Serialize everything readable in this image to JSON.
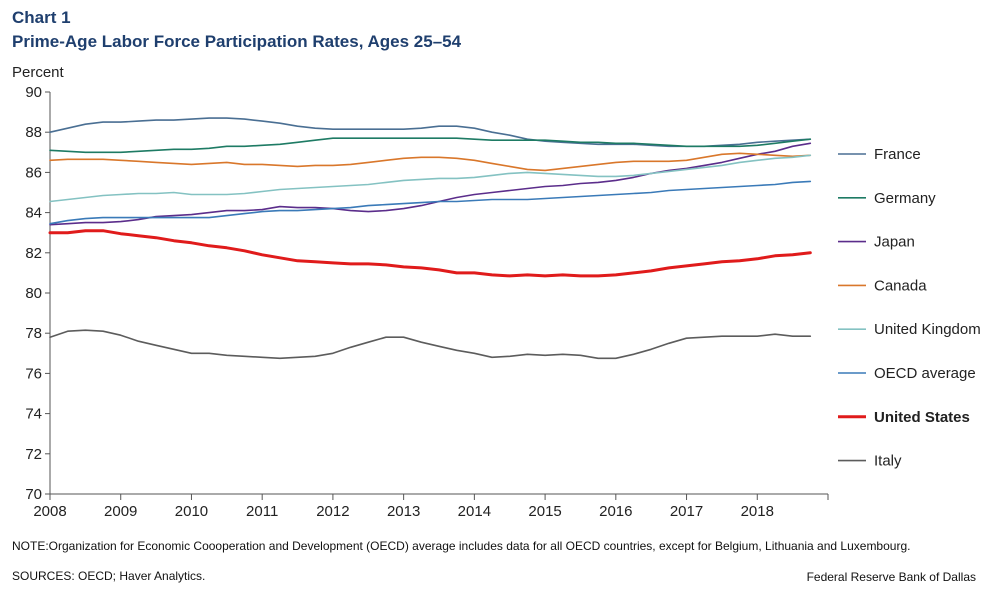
{
  "chart_data": {
    "type": "line",
    "title": "Chart 1",
    "subtitle": "Prime-Age Labor Force Participation Rates, Ages 25–54",
    "ylabel": "Percent",
    "xlabel": "",
    "xlim": [
      2008,
      2019
    ],
    "ylim": [
      70,
      90
    ],
    "yticks": [
      "70",
      "72",
      "74",
      "76",
      "78",
      "80",
      "82",
      "84",
      "86",
      "88",
      "90"
    ],
    "xticks": [
      "2008",
      "2009",
      "2010",
      "2011",
      "2012",
      "2013",
      "2014",
      "2015",
      "2016",
      "2017",
      "2018"
    ],
    "x": [
      2008.0,
      2008.25,
      2008.5,
      2008.75,
      2009.0,
      2009.25,
      2009.5,
      2009.75,
      2010.0,
      2010.25,
      2010.5,
      2010.75,
      2011.0,
      2011.25,
      2011.5,
      2011.75,
      2012.0,
      2012.25,
      2012.5,
      2012.75,
      2013.0,
      2013.25,
      2013.5,
      2013.75,
      2014.0,
      2014.25,
      2014.5,
      2014.75,
      2015.0,
      2015.25,
      2015.5,
      2015.75,
      2016.0,
      2016.25,
      2016.5,
      2016.75,
      2017.0,
      2017.25,
      2017.5,
      2017.75,
      2018.0,
      2018.25,
      2018.5,
      2018.75
    ],
    "series": [
      {
        "name": "France",
        "color": "#4a6f93",
        "width": 1.6,
        "bold": false,
        "values": [
          88.0,
          88.2,
          88.4,
          88.5,
          88.5,
          88.55,
          88.6,
          88.6,
          88.65,
          88.7,
          88.7,
          88.65,
          88.55,
          88.45,
          88.3,
          88.2,
          88.15,
          88.15,
          88.15,
          88.15,
          88.15,
          88.2,
          88.3,
          88.3,
          88.2,
          88.0,
          87.85,
          87.65,
          87.55,
          87.5,
          87.45,
          87.4,
          87.4,
          87.4,
          87.35,
          87.3,
          87.3,
          87.3,
          87.35,
          87.4,
          87.5,
          87.55,
          87.6,
          87.65
        ]
      },
      {
        "name": "Germany",
        "color": "#1e7b64",
        "width": 1.6,
        "bold": false,
        "values": [
          87.1,
          87.05,
          87.0,
          87.0,
          87.0,
          87.05,
          87.1,
          87.15,
          87.15,
          87.2,
          87.3,
          87.3,
          87.35,
          87.4,
          87.5,
          87.6,
          87.7,
          87.7,
          87.7,
          87.7,
          87.7,
          87.7,
          87.7,
          87.7,
          87.65,
          87.6,
          87.6,
          87.6,
          87.6,
          87.55,
          87.5,
          87.5,
          87.45,
          87.45,
          87.4,
          87.35,
          87.3,
          87.3,
          87.3,
          87.3,
          87.35,
          87.45,
          87.55,
          87.65
        ]
      },
      {
        "name": "Japan",
        "color": "#5b2d8b",
        "width": 1.6,
        "bold": false,
        "values": [
          83.4,
          83.45,
          83.5,
          83.5,
          83.55,
          83.65,
          83.8,
          83.85,
          83.9,
          84.0,
          84.1,
          84.1,
          84.15,
          84.3,
          84.25,
          84.25,
          84.2,
          84.1,
          84.05,
          84.1,
          84.2,
          84.35,
          84.55,
          84.75,
          84.9,
          85.0,
          85.1,
          85.2,
          85.3,
          85.35,
          85.45,
          85.5,
          85.6,
          85.75,
          85.95,
          86.1,
          86.2,
          86.35,
          86.5,
          86.7,
          86.9,
          87.05,
          87.3,
          87.45
        ]
      },
      {
        "name": "Canada",
        "color": "#d9772b",
        "width": 1.6,
        "bold": false,
        "values": [
          86.6,
          86.65,
          86.65,
          86.65,
          86.6,
          86.55,
          86.5,
          86.45,
          86.4,
          86.45,
          86.5,
          86.4,
          86.4,
          86.35,
          86.3,
          86.35,
          86.35,
          86.4,
          86.5,
          86.6,
          86.7,
          86.75,
          86.75,
          86.7,
          86.6,
          86.45,
          86.3,
          86.15,
          86.1,
          86.2,
          86.3,
          86.4,
          86.5,
          86.55,
          86.55,
          86.55,
          86.6,
          86.75,
          86.9,
          86.95,
          86.9,
          86.85,
          86.8,
          86.85
        ]
      },
      {
        "name": "United Kingdom",
        "color": "#84c2c2",
        "width": 1.6,
        "bold": false,
        "values": [
          84.55,
          84.65,
          84.75,
          84.85,
          84.9,
          84.95,
          84.95,
          85.0,
          84.9,
          84.9,
          84.9,
          84.95,
          85.05,
          85.15,
          85.2,
          85.25,
          85.3,
          85.35,
          85.4,
          85.5,
          85.6,
          85.65,
          85.7,
          85.7,
          85.75,
          85.85,
          85.95,
          86.0,
          85.95,
          85.9,
          85.85,
          85.8,
          85.8,
          85.85,
          85.95,
          86.05,
          86.15,
          86.25,
          86.35,
          86.5,
          86.6,
          86.7,
          86.75,
          86.85
        ]
      },
      {
        "name": "OECD average",
        "color": "#3a7ab8",
        "width": 1.6,
        "bold": false,
        "values": [
          83.45,
          83.6,
          83.7,
          83.75,
          83.75,
          83.75,
          83.75,
          83.75,
          83.75,
          83.75,
          83.85,
          83.95,
          84.05,
          84.1,
          84.1,
          84.15,
          84.2,
          84.25,
          84.35,
          84.4,
          84.45,
          84.5,
          84.55,
          84.55,
          84.6,
          84.65,
          84.65,
          84.65,
          84.7,
          84.75,
          84.8,
          84.85,
          84.9,
          84.95,
          85.0,
          85.1,
          85.15,
          85.2,
          85.25,
          85.3,
          85.35,
          85.4,
          85.5,
          85.55
        ]
      },
      {
        "name": "United States",
        "color": "#e01b1b",
        "width": 3,
        "bold": true,
        "values": [
          83.0,
          83.0,
          83.1,
          83.1,
          82.95,
          82.85,
          82.75,
          82.6,
          82.5,
          82.35,
          82.25,
          82.1,
          81.9,
          81.75,
          81.6,
          81.55,
          81.5,
          81.45,
          81.45,
          81.4,
          81.3,
          81.25,
          81.15,
          81.0,
          81.0,
          80.9,
          80.85,
          80.9,
          80.85,
          80.9,
          80.85,
          80.85,
          80.9,
          81.0,
          81.1,
          81.25,
          81.35,
          81.45,
          81.55,
          81.6,
          81.7,
          81.85,
          81.9,
          82.0
        ]
      },
      {
        "name": "Italy",
        "color": "#5c5c5c",
        "width": 1.6,
        "bold": false,
        "values": [
          77.8,
          78.1,
          78.15,
          78.1,
          77.9,
          77.6,
          77.4,
          77.2,
          77.0,
          77.0,
          76.9,
          76.85,
          76.8,
          76.75,
          76.8,
          76.85,
          77.0,
          77.3,
          77.55,
          77.8,
          77.8,
          77.55,
          77.35,
          77.15,
          77.0,
          76.8,
          76.85,
          76.95,
          76.9,
          76.95,
          76.9,
          76.75,
          76.75,
          76.95,
          77.2,
          77.5,
          77.75,
          77.8,
          77.85,
          77.85,
          77.85,
          77.95,
          77.85,
          77.85
        ]
      }
    ],
    "note": "NOTE:Organization for Economic Coooperation and Development (OECD) average includes data for all OECD countries, except for Belgium, Lithuania and Luxembourg.",
    "sources": "SOURCES: OECD; Haver Analytics.",
    "credit": "Federal Reserve Bank of Dallas"
  }
}
